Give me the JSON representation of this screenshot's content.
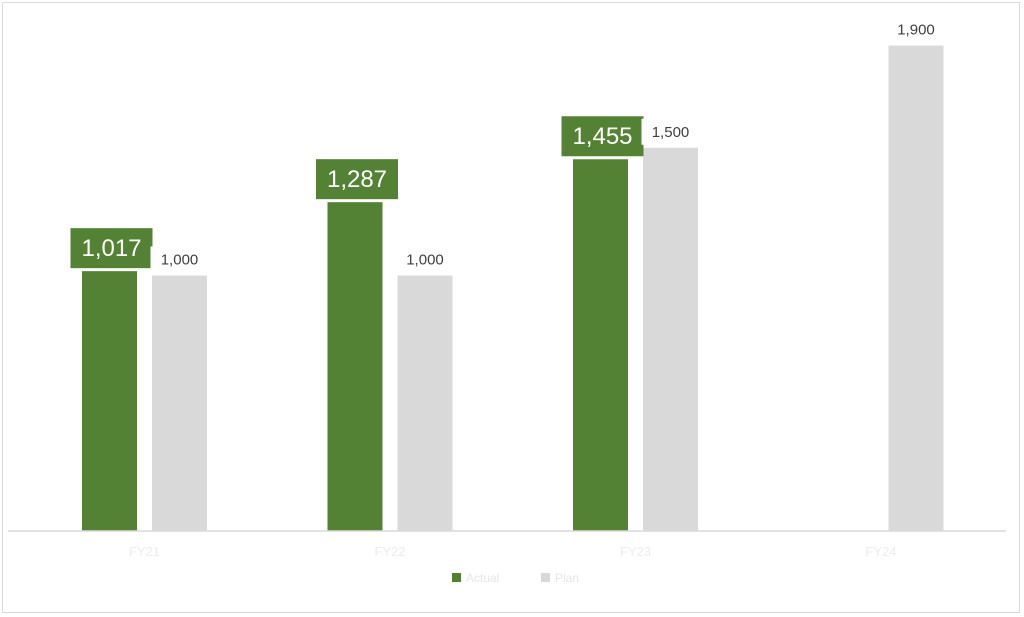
{
  "chart_data": {
    "type": "bar",
    "categories": [
      "FY21",
      "FY22",
      "FY23",
      "FY24"
    ],
    "series": [
      {
        "name": "Actual",
        "values": [
          1017,
          1287,
          1455,
          null
        ],
        "color": "#548235"
      },
      {
        "name": "Plan",
        "values": [
          1000,
          1000,
          1500,
          1900
        ],
        "color": "#d9d9d9"
      }
    ],
    "labels": {
      "Actual": [
        "1,017",
        "1,287",
        "1,455",
        ""
      ],
      "Plan": [
        "1,000",
        "1,000",
        "1,500",
        "1,900"
      ]
    },
    "ylim": [
      0,
      2000
    ],
    "grid": false,
    "legend": "bottom",
    "title": "",
    "xlabel": "",
    "ylabel": ""
  }
}
